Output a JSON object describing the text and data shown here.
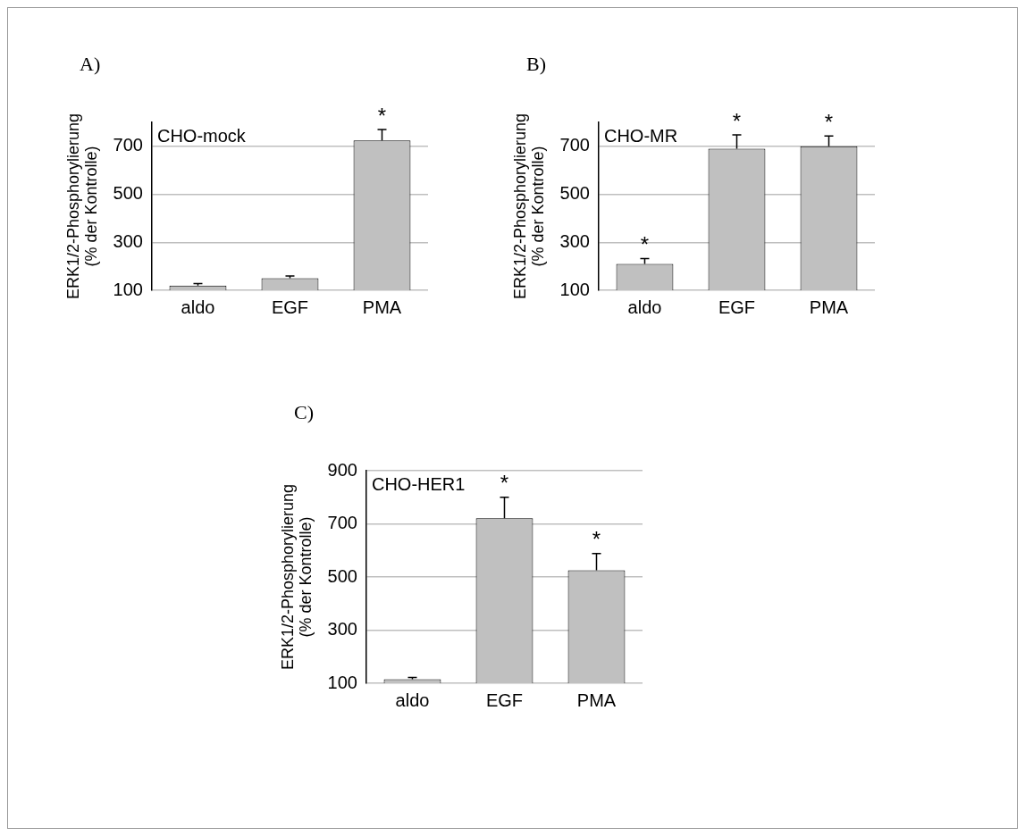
{
  "chart_data": [
    {
      "type": "bar",
      "title": "A)",
      "ylabel": "ERK1/2-Phosphorylierung\n(% der Kontrolle)",
      "categories": [
        "aldo",
        "EGF",
        "PMA"
      ],
      "values": [
        120,
        150,
        725
      ],
      "errors": [
        [
          120,
          128
        ],
        [
          150,
          160
        ],
        [
          725,
          770
        ]
      ],
      "color": "#c0c0c0",
      "ylim": [
        100,
        800
      ],
      "yticks": [
        100,
        300,
        500,
        700
      ],
      "grid": "y",
      "legend": false,
      "annotations": [
        "CHO-mock",
        {
          "text": "*",
          "x": "PMA",
          "y": 770
        }
      ]
    },
    {
      "type": "bar",
      "title": "B)",
      "ylabel": "ERK1/2-Phosphorylierung\n(% der Kontrolle)",
      "categories": [
        "aldo",
        "EGF",
        "PMA"
      ],
      "values": [
        210,
        690,
        700
      ],
      "errors": [
        [
          210,
          232
        ],
        [
          690,
          748
        ],
        [
          700,
          743
        ]
      ],
      "color": "#c0c0c0",
      "ylim": [
        100,
        800
      ],
      "yticks": [
        100,
        300,
        500,
        700
      ],
      "grid": "y",
      "legend": false,
      "annotations": [
        "CHO-MR",
        {
          "text": "*",
          "x": "aldo",
          "y": 232
        },
        {
          "text": "*",
          "x": "EGF",
          "y": 748
        },
        {
          "text": "*",
          "x": "PMA",
          "y": 743
        }
      ]
    },
    {
      "type": "bar",
      "title": "C)",
      "ylabel": "ERK1/2-Phosphorylierung\n(% der Kontrolle)",
      "categories": [
        "aldo",
        "EGF",
        "PMA"
      ],
      "values": [
        115,
        721,
        525
      ],
      "errors": [
        [
          115,
          122
        ],
        [
          721,
          800
        ],
        [
          525,
          588
        ]
      ],
      "color": "#c0c0c0",
      "ylim": [
        100,
        900
      ],
      "yticks": [
        100,
        300,
        500,
        700,
        900
      ],
      "grid": "y",
      "legend": false,
      "annotations": [
        "CHO-HER1",
        {
          "text": "*",
          "x": "EGF",
          "y": 800
        },
        {
          "text": "*",
          "x": "PMA",
          "y": 588
        }
      ]
    }
  ]
}
